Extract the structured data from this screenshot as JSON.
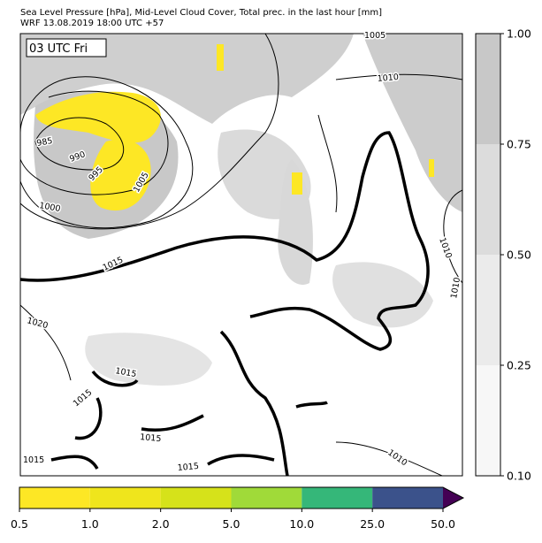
{
  "header": {
    "title_line1": "Sea Level Pressure [hPa], Mid-Level Cloud Cover, Total prec. in the last hour [mm]",
    "title_line2": "WRF 13.08.2019 18:00 UTC +57"
  },
  "map": {
    "time_label": "03 UTC Fri",
    "contour_labels": [
      "1005",
      "1010",
      "985",
      "990",
      "995",
      "1005",
      "1000",
      "1015",
      "1020",
      "1010",
      "1010",
      "1015",
      "1015",
      "1015",
      "1015",
      "1015",
      "1010"
    ]
  },
  "cloud_colorbar": {
    "ticks": [
      "0.10",
      "0.25",
      "0.50",
      "0.75",
      "1.00"
    ],
    "colors": [
      "#f7f7f7",
      "#ebebeb",
      "#dcdcdc",
      "#c8c8c8"
    ]
  },
  "precip_colorbar": {
    "ticks": [
      "0.5",
      "1.0",
      "2.0",
      "5.0",
      "10.0",
      "25.0",
      "50.0"
    ],
    "colors": [
      "#fde725",
      "#efe51c",
      "#d6e21a",
      "#a0da39",
      "#35b779",
      "#3b528b",
      "#440154"
    ]
  }
}
